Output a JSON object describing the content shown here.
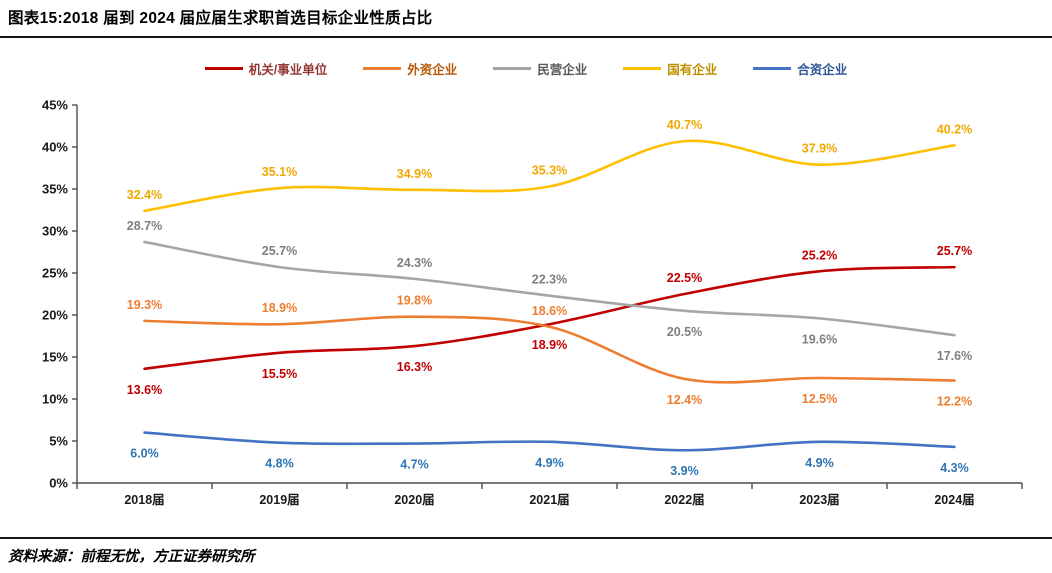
{
  "header": {
    "title": "图表15:2018 届到 2024 届应届生求职首选目标企业性质占比"
  },
  "footer": {
    "source": "资料来源：前程无忧，方正证券研究所"
  },
  "chart_data": {
    "type": "line",
    "title": "2018 届到 2024 届应届生求职首选目标企业性质占比",
    "categories": [
      "2018届",
      "2019届",
      "2020届",
      "2021届",
      "2022届",
      "2023届",
      "2024届"
    ],
    "series": [
      {
        "name": "机关/事业单位",
        "values": [
          13.6,
          15.5,
          16.3,
          18.9,
          22.5,
          25.2,
          25.7
        ],
        "color": "#C00000",
        "label_color": "#C00000",
        "legend_text_color": "#943634",
        "label_positions": [
          "below",
          "below",
          "below",
          "below",
          "above",
          "above",
          "above"
        ]
      },
      {
        "name": "外资企业",
        "values": [
          19.3,
          18.9,
          19.8,
          18.6,
          12.4,
          12.5,
          12.2
        ],
        "color": "#ED7D31",
        "label_color": "#ED7D31",
        "legend_text_color": "#B65708",
        "label_positions": [
          "above",
          "above",
          "above",
          "above",
          "below",
          "below",
          "below"
        ]
      },
      {
        "name": "民营企业",
        "values": [
          28.7,
          25.7,
          24.3,
          22.3,
          20.5,
          19.6,
          17.6
        ],
        "color": "#A6A6A6",
        "label_color": "#7F7F7F",
        "legend_text_color": "#595959",
        "label_positions": [
          "above",
          "above",
          "above",
          "above",
          "below",
          "below",
          "below"
        ]
      },
      {
        "name": "国有企业",
        "values": [
          32.4,
          35.1,
          34.9,
          35.3,
          40.7,
          37.9,
          40.2
        ],
        "color": "#FFC000",
        "label_color": "#F0A800",
        "legend_text_color": "#BF8F00",
        "label_positions": [
          "above",
          "above",
          "above",
          "above",
          "above",
          "above",
          "above"
        ]
      },
      {
        "name": "合资企业",
        "values": [
          6.0,
          4.8,
          4.7,
          4.9,
          3.9,
          4.9,
          4.3
        ],
        "color": "#4472C4",
        "label_color": "#2E75B6",
        "legend_text_color": "#2F5597",
        "label_positions": [
          "below",
          "below",
          "below",
          "below",
          "below",
          "below",
          "below"
        ]
      }
    ],
    "ylim": [
      0,
      45
    ],
    "ytick_step": 5,
    "ytick_suffix": "%",
    "value_suffix": "%",
    "value_decimals": 1,
    "grid": false,
    "legend_position": "top",
    "axis_color": "#4d4d4d",
    "tick_label_color": "#1a1a1a"
  }
}
